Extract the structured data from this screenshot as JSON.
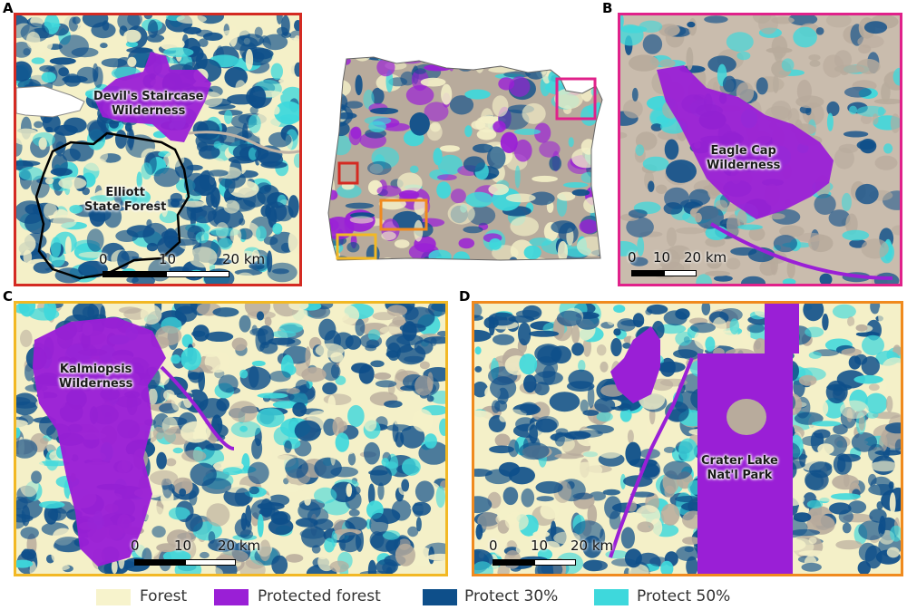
{
  "panels": {
    "a": {
      "letter": "A",
      "border_color": "#d42a22",
      "labels": {
        "wilderness": "Devil's Staircase\nWilderness",
        "forest": "Elliott\nState Forest"
      },
      "scale": [
        "0",
        "10",
        "20 km"
      ]
    },
    "b": {
      "letter": "B",
      "border_color": "#e0218a",
      "labels": {
        "wilderness": "Eagle Cap\nWilderness"
      },
      "scale": [
        "0",
        "10",
        "20 km"
      ]
    },
    "c": {
      "letter": "C",
      "border_color": "#f2b824",
      "labels": {
        "wilderness": "Kalmiopsis\nWilderness"
      },
      "scale": [
        "0",
        "10",
        "20 km"
      ]
    },
    "d": {
      "letter": "D",
      "border_color": "#f08a1e",
      "labels": {
        "park": "Crater Lake\nNat'l Park"
      },
      "scale": [
        "0",
        "10",
        "20 km"
      ]
    }
  },
  "overview": {
    "inset_colors": [
      "#d42a22",
      "#e0218a",
      "#f2b824",
      "#f08a1e"
    ]
  },
  "legend": [
    {
      "label": "Forest",
      "color": "#f7f3cc"
    },
    {
      "label": "Protected forest",
      "color": "#9a1fd6"
    },
    {
      "label": "Protect 30%",
      "color": "#0e4f8a"
    },
    {
      "label": "Protect 50%",
      "color": "#3ed8dc"
    }
  ],
  "colors": {
    "forest": "#f4f0c8",
    "protected": "#9a1fd6",
    "protect30": "#0e4f8a",
    "protect50": "#3ed8dc",
    "nonforest": "#b8ab9c"
  }
}
